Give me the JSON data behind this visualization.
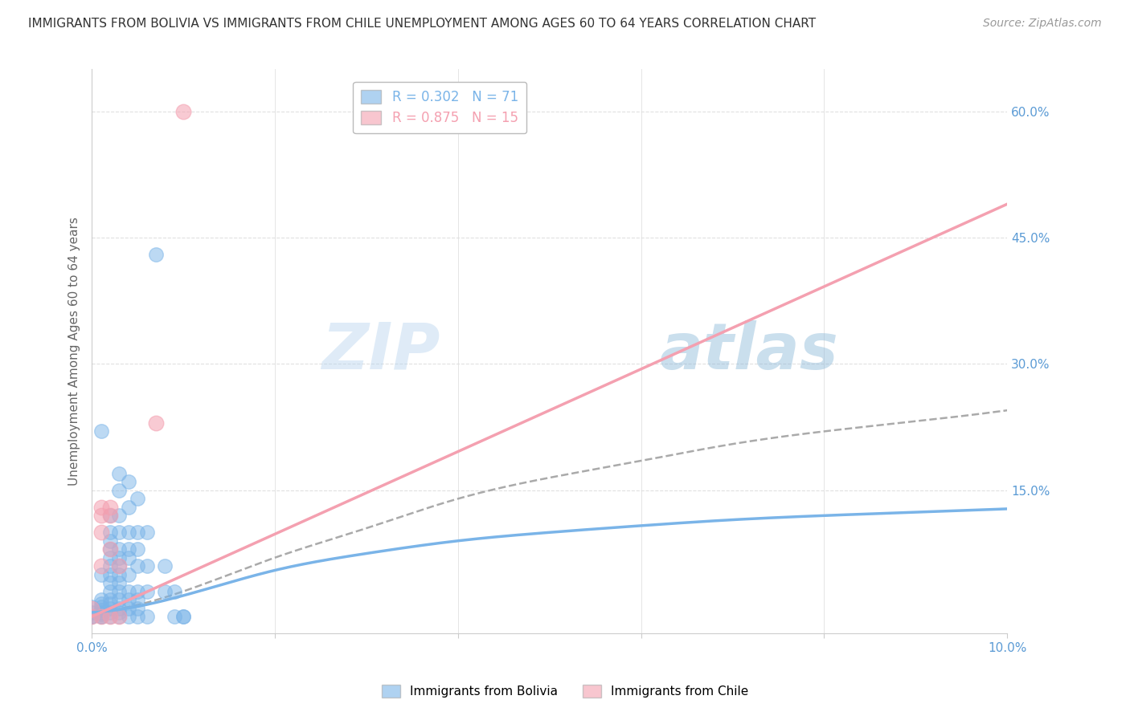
{
  "title": "IMMIGRANTS FROM BOLIVIA VS IMMIGRANTS FROM CHILE UNEMPLOYMENT AMONG AGES 60 TO 64 YEARS CORRELATION CHART",
  "source": "Source: ZipAtlas.com",
  "ylabel": "Unemployment Among Ages 60 to 64 years",
  "xlim": [
    0.0,
    0.1
  ],
  "ylim": [
    -0.02,
    0.65
  ],
  "y_tick_vals_right": [
    0.15,
    0.3,
    0.45,
    0.6
  ],
  "y_tick_labels_right": [
    "15.0%",
    "30.0%",
    "45.0%",
    "60.0%"
  ],
  "x_tick_vals": [
    0.0,
    0.02,
    0.04,
    0.06,
    0.08,
    0.1
  ],
  "x_tick_labels_show": [
    "0.0%",
    "",
    "",
    "",
    "",
    "10.0%"
  ],
  "legend_entries": [
    {
      "label": "R = 0.302   N = 71",
      "color": "#7ab4e8"
    },
    {
      "label": "R = 0.875   N = 15",
      "color": "#f4a0b0"
    }
  ],
  "watermark_zip": "ZIP",
  "watermark_atlas": "atlas",
  "bolivia_color": "#7ab4e8",
  "chile_color": "#f4a0b0",
  "bolivia_scatter": [
    [
      0.0,
      0.0
    ],
    [
      0.0,
      0.005
    ],
    [
      0.0,
      0.012
    ],
    [
      0.0,
      0.0
    ],
    [
      0.001,
      0.0
    ],
    [
      0.001,
      0.005
    ],
    [
      0.001,
      0.008
    ],
    [
      0.001,
      0.012
    ],
    [
      0.001,
      0.02
    ],
    [
      0.001,
      0.0
    ],
    [
      0.001,
      0.003
    ],
    [
      0.001,
      0.015
    ],
    [
      0.001,
      0.05
    ],
    [
      0.001,
      0.22
    ],
    [
      0.002,
      0.0
    ],
    [
      0.002,
      0.005
    ],
    [
      0.002,
      0.01
    ],
    [
      0.002,
      0.015
    ],
    [
      0.002,
      0.02
    ],
    [
      0.002,
      0.03
    ],
    [
      0.002,
      0.04
    ],
    [
      0.002,
      0.05
    ],
    [
      0.002,
      0.06
    ],
    [
      0.002,
      0.07
    ],
    [
      0.002,
      0.08
    ],
    [
      0.002,
      0.09
    ],
    [
      0.002,
      0.1
    ],
    [
      0.002,
      0.12
    ],
    [
      0.003,
      0.0
    ],
    [
      0.003,
      0.005
    ],
    [
      0.003,
      0.01
    ],
    [
      0.003,
      0.02
    ],
    [
      0.003,
      0.03
    ],
    [
      0.003,
      0.04
    ],
    [
      0.003,
      0.05
    ],
    [
      0.003,
      0.06
    ],
    [
      0.003,
      0.07
    ],
    [
      0.003,
      0.08
    ],
    [
      0.003,
      0.1
    ],
    [
      0.003,
      0.12
    ],
    [
      0.003,
      0.15
    ],
    [
      0.003,
      0.17
    ],
    [
      0.004,
      0.0
    ],
    [
      0.004,
      0.01
    ],
    [
      0.004,
      0.02
    ],
    [
      0.004,
      0.03
    ],
    [
      0.004,
      0.05
    ],
    [
      0.004,
      0.07
    ],
    [
      0.004,
      0.08
    ],
    [
      0.004,
      0.1
    ],
    [
      0.004,
      0.13
    ],
    [
      0.004,
      0.16
    ],
    [
      0.005,
      0.0
    ],
    [
      0.005,
      0.01
    ],
    [
      0.005,
      0.02
    ],
    [
      0.005,
      0.03
    ],
    [
      0.005,
      0.06
    ],
    [
      0.005,
      0.08
    ],
    [
      0.005,
      0.1
    ],
    [
      0.005,
      0.14
    ],
    [
      0.006,
      0.0
    ],
    [
      0.006,
      0.03
    ],
    [
      0.006,
      0.06
    ],
    [
      0.006,
      0.1
    ],
    [
      0.007,
      0.43
    ],
    [
      0.008,
      0.03
    ],
    [
      0.008,
      0.06
    ],
    [
      0.009,
      0.0
    ],
    [
      0.009,
      0.03
    ],
    [
      0.01,
      0.0
    ],
    [
      0.01,
      0.0
    ]
  ],
  "chile_scatter": [
    [
      0.0,
      0.0
    ],
    [
      0.0,
      0.01
    ],
    [
      0.001,
      0.0
    ],
    [
      0.001,
      0.06
    ],
    [
      0.001,
      0.1
    ],
    [
      0.001,
      0.12
    ],
    [
      0.001,
      0.13
    ],
    [
      0.002,
      0.0
    ],
    [
      0.002,
      0.08
    ],
    [
      0.002,
      0.12
    ],
    [
      0.002,
      0.13
    ],
    [
      0.003,
      0.0
    ],
    [
      0.003,
      0.06
    ],
    [
      0.007,
      0.23
    ],
    [
      0.01,
      0.6
    ]
  ],
  "bolivia_curve_x": [
    0.0,
    0.01,
    0.02,
    0.03,
    0.04,
    0.05,
    0.06,
    0.07,
    0.08,
    0.09,
    0.1
  ],
  "bolivia_curve_y": [
    0.005,
    0.025,
    0.055,
    0.075,
    0.09,
    0.1,
    0.108,
    0.115,
    0.12,
    0.124,
    0.128
  ],
  "bolivia_dashed_x": [
    0.0,
    0.01,
    0.02,
    0.03,
    0.04,
    0.05,
    0.06,
    0.07,
    0.08,
    0.09,
    0.1
  ],
  "bolivia_dashed_y": [
    0.005,
    0.03,
    0.07,
    0.105,
    0.14,
    0.165,
    0.185,
    0.205,
    0.22,
    0.232,
    0.245
  ],
  "chile_line_x": [
    0.0,
    0.1
  ],
  "chile_line_y": [
    0.0,
    0.49
  ],
  "title_fontsize": 11,
  "source_fontsize": 10,
  "axis_label_fontsize": 11,
  "tick_fontsize": 11,
  "legend_fontsize": 12,
  "background_color": "#ffffff",
  "grid_color": "#e0e0e0",
  "title_color": "#333333",
  "axis_label_color": "#666666",
  "tick_color": "#5b9bd5",
  "right_tick_color": "#5b9bd5"
}
